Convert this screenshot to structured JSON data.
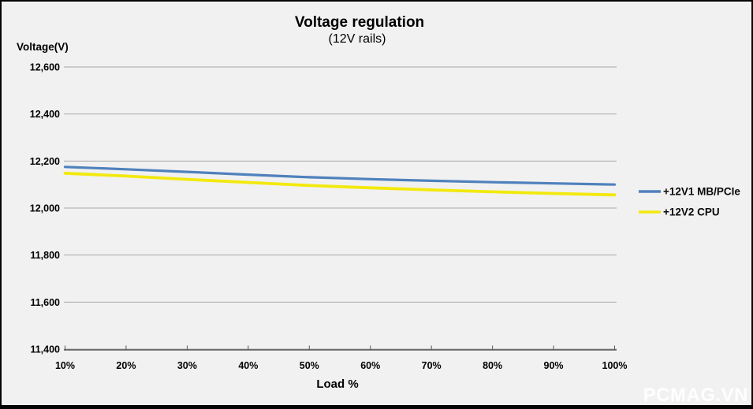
{
  "watermark": "PCMAG.VN",
  "colors": {
    "background": "#f1f1f1",
    "border": "#050505",
    "gridline": "#a6a6a6",
    "axis_line": "#595959",
    "series_blue": "#4f81bd",
    "series_yellow": "#f2e90e",
    "text": "#000000",
    "watermark_text": "#ffffff"
  },
  "chart_data": {
    "type": "line",
    "title": "Voltage regulation",
    "subtitle": "(12V rails)",
    "y_axis_label": "Voltage(V)",
    "x_axis_label": "Load %",
    "categories": [
      "10%",
      "20%",
      "30%",
      "40%",
      "50%",
      "60%",
      "70%",
      "80%",
      "90%",
      "100%"
    ],
    "series": [
      {
        "name": "+12V1 MB/PCIe",
        "color": "#4f81bd",
        "stroke_width": 3.2,
        "values": [
          12175,
          12165,
          12154,
          12142,
          12131,
          12123,
          12116,
          12110,
          12105,
          12100
        ]
      },
      {
        "name": "+12V2 CPU",
        "color": "#f2e90e",
        "stroke_width": 3.8,
        "values": [
          12148,
          12136,
          12122,
          12109,
          12096,
          12086,
          12077,
          12069,
          12062,
          12056
        ]
      }
    ],
    "ylim": [
      11400,
      12600
    ],
    "ytick_step": 200,
    "y_ticks": [
      {
        "value": 12600,
        "label": "12,600"
      },
      {
        "value": 12400,
        "label": "12,400"
      },
      {
        "value": 12200,
        "label": "12,200"
      },
      {
        "value": 12000,
        "label": "12,000"
      },
      {
        "value": 11800,
        "label": "11,800"
      },
      {
        "value": 11600,
        "label": "11,600"
      },
      {
        "value": 11400,
        "label": "11,400"
      }
    ],
    "grid": true,
    "legend_position": "right"
  }
}
